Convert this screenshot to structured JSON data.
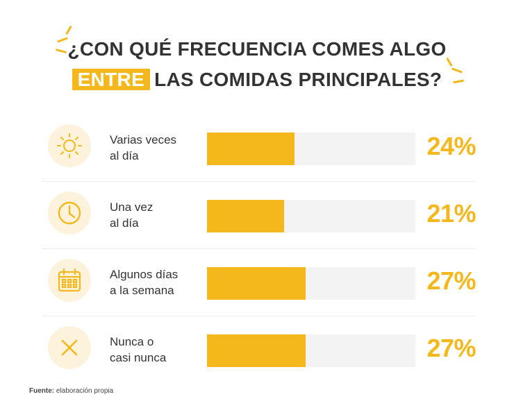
{
  "title": {
    "line1": "¿CON QUÉ FRECUENCIA COMES ALGO",
    "highlight": "ENTRE",
    "line2_rest": "LAS COMIDAS PRINCIPALES?"
  },
  "colors": {
    "accent": "#f5b81c",
    "track": "#f3f3f3",
    "icon_bg": "#fdf3dd",
    "text": "#333333"
  },
  "chart_data": {
    "type": "bar",
    "orientation": "horizontal",
    "categories": [
      "Varias veces al día",
      "Una vez al día",
      "Algunos días a la semana",
      "Nunca o casi nunca"
    ],
    "values": [
      24,
      21,
      27,
      27
    ],
    "unit": "%",
    "xlim": [
      0,
      57
    ]
  },
  "rows": [
    {
      "icon": "sun-icon",
      "line1": "Varias veces",
      "line2": "al día",
      "value_label": "24%"
    },
    {
      "icon": "clock-icon",
      "line1": "Una vez",
      "line2": "al día",
      "value_label": "21%"
    },
    {
      "icon": "calendar-icon",
      "line1": "Algunos días",
      "line2": "a la semana",
      "value_label": "27%"
    },
    {
      "icon": "close-icon",
      "line1": "Nunca o",
      "line2": "casi nunca",
      "value_label": "27%"
    }
  ],
  "source": {
    "label": "Fuente:",
    "text": "elaboración propia"
  }
}
